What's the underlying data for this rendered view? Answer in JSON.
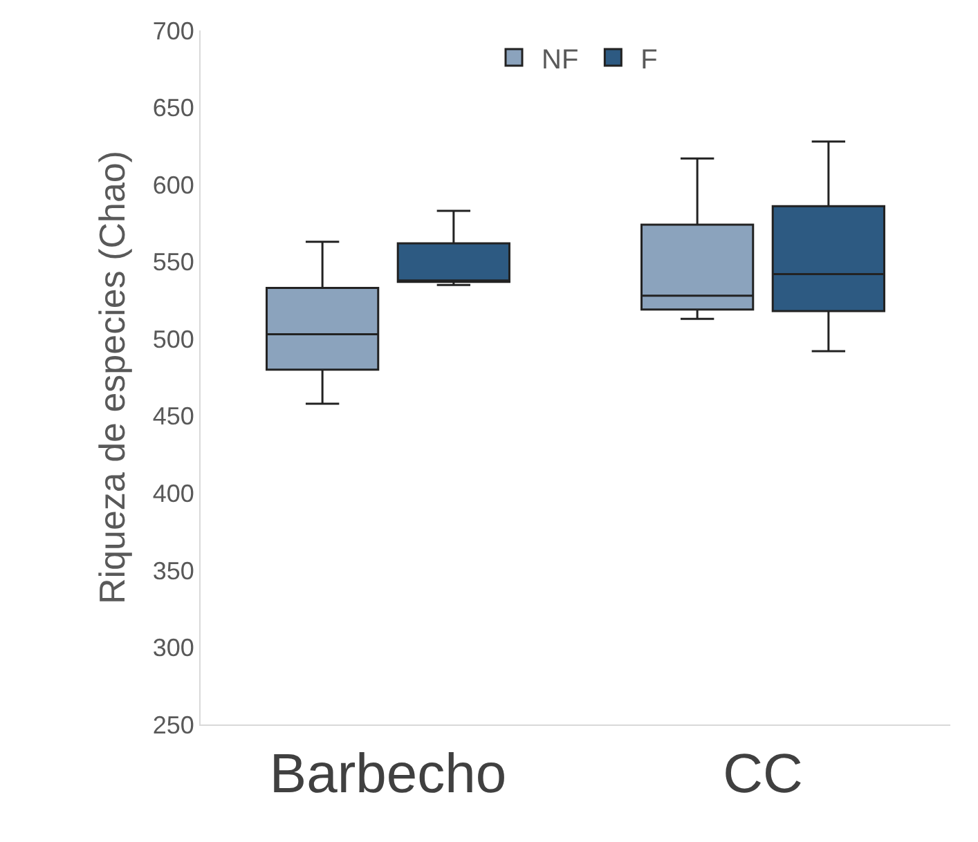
{
  "chart_data": {
    "type": "box",
    "ylabel": "Riqueza de especies (Chao)",
    "categories": [
      "Barbecho",
      "CC"
    ],
    "series": [
      {
        "name": "NF",
        "color": "#8ba3bd",
        "boxes": [
          {
            "low": 458,
            "q1": 480,
            "median": 503,
            "q3": 533,
            "high": 563
          },
          {
            "low": 513,
            "q1": 519,
            "median": 528,
            "q3": 574,
            "high": 617
          }
        ]
      },
      {
        "name": "F",
        "color": "#2d5a82",
        "boxes": [
          {
            "low": 535,
            "q1": 537,
            "median": 537,
            "q3": 562,
            "high": 583
          },
          {
            "low": 492,
            "q1": 518,
            "median": 542,
            "q3": 586,
            "high": 628
          }
        ]
      }
    ],
    "ylim": [
      250,
      700
    ],
    "yticks": [
      250,
      300,
      350,
      400,
      450,
      500,
      550,
      600,
      650,
      700
    ],
    "grid": false,
    "legend": "top"
  }
}
